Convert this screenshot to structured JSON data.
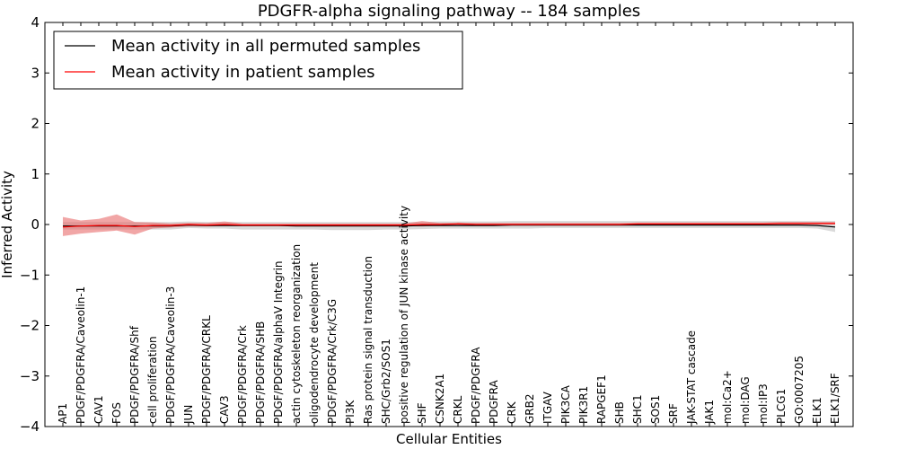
{
  "chart_data": {
    "type": "line",
    "title": "PDGFR-alpha signaling pathway -- 184 samples",
    "xlabel": "Cellular Entities",
    "ylabel": "Inferred Activity",
    "ylim": [
      -4,
      4
    ],
    "yticks": [
      4,
      3,
      2,
      1,
      0,
      -1,
      -2,
      -3,
      -4
    ],
    "ytick_labels": [
      "4",
      "3",
      "2",
      "1",
      "0",
      "−1",
      "−2",
      "−3",
      "−4"
    ],
    "legend_position": "top-left",
    "categories": [
      "AP1",
      "PDGF/PDGFRA/Caveolin-1",
      "CAV1",
      "FOS",
      "PDGF/PDGFRA/Shf",
      "cell proliferation",
      "PDGF/PDGFRA/Caveolin-3",
      "JUN",
      "PDGF/PDGFRA/CRKL",
      "CAV3",
      "PDGF/PDGFRA/Crk",
      "PDGF/PDGFRA/SHB",
      "PDGF/PDGFRA/alphaV Integrin",
      "actin cytoskeleton reorganization",
      "oligodendrocyte development",
      "PDGF/PDGFRA/Crk/C3G",
      "PI3K",
      "Ras protein signal transduction",
      "SHC/Grb2/SOS1",
      "positive regulation of JUN kinase activity",
      "SHF",
      "CSNK2A1",
      "CRKL",
      "PDGF/PDGFRA",
      "PDGFRA",
      "CRK",
      "GRB2",
      "ITGAV",
      "PIK3CA",
      "PIK3R1",
      "RAPGEF1",
      "SHB",
      "SHC1",
      "SOS1",
      "SRF",
      "JAK-STAT cascade",
      "JAK1",
      "mol:Ca2+",
      "mol:DAG",
      "mol:IP3",
      "PLCG1",
      "GO:0007205",
      "ELK1",
      "ELK1/SRF"
    ],
    "series": [
      {
        "name": "Mean activity in all permuted samples",
        "color": "#000000",
        "band_color": "#bbbbbb",
        "values": [
          -0.03,
          -0.03,
          -0.03,
          -0.03,
          -0.03,
          -0.03,
          -0.03,
          -0.01,
          -0.02,
          -0.02,
          -0.02,
          -0.02,
          -0.02,
          -0.03,
          -0.03,
          -0.03,
          -0.03,
          -0.03,
          -0.03,
          -0.03,
          -0.02,
          -0.02,
          -0.02,
          -0.02,
          -0.02,
          -0.01,
          -0.01,
          -0.01,
          -0.01,
          -0.01,
          -0.01,
          -0.01,
          -0.01,
          -0.01,
          -0.01,
          -0.01,
          -0.01,
          -0.01,
          -0.01,
          -0.01,
          -0.01,
          -0.01,
          -0.02,
          -0.05
        ],
        "band_lower": [
          -0.1,
          -0.1,
          -0.1,
          -0.1,
          -0.1,
          -0.1,
          -0.1,
          -0.07,
          -0.08,
          -0.08,
          -0.1,
          -0.1,
          -0.1,
          -0.1,
          -0.1,
          -0.11,
          -0.11,
          -0.11,
          -0.1,
          -0.1,
          -0.09,
          -0.08,
          -0.08,
          -0.08,
          -0.08,
          -0.08,
          -0.08,
          -0.07,
          -0.07,
          -0.07,
          -0.07,
          -0.07,
          -0.07,
          -0.07,
          -0.07,
          -0.07,
          -0.07,
          -0.07,
          -0.07,
          -0.07,
          -0.07,
          -0.07,
          -0.08,
          -0.15
        ],
        "band_upper": [
          0.05,
          0.05,
          0.05,
          0.05,
          0.05,
          0.05,
          0.05,
          0.06,
          0.05,
          0.05,
          0.05,
          0.05,
          0.05,
          0.05,
          0.05,
          0.05,
          0.05,
          0.05,
          0.05,
          0.05,
          0.05,
          0.06,
          0.06,
          0.06,
          0.06,
          0.07,
          0.07,
          0.07,
          0.07,
          0.07,
          0.07,
          0.07,
          0.07,
          0.07,
          0.07,
          0.07,
          0.07,
          0.07,
          0.07,
          0.07,
          0.07,
          0.07,
          0.07,
          0.07
        ]
      },
      {
        "name": "Mean activity in patient samples",
        "color": "#ff0000",
        "band_color": "#e86a6a",
        "values": [
          -0.05,
          -0.03,
          -0.02,
          -0.02,
          -0.04,
          -0.02,
          -0.02,
          0.0,
          -0.01,
          0.0,
          -0.01,
          -0.01,
          -0.01,
          -0.01,
          -0.01,
          -0.01,
          -0.01,
          -0.01,
          -0.01,
          -0.01,
          0.0,
          0.0,
          0.01,
          0.0,
          0.0,
          0.0,
          0.0,
          0.0,
          0.0,
          0.0,
          0.0,
          0.0,
          0.01,
          0.01,
          0.01,
          0.01,
          0.01,
          0.01,
          0.01,
          0.01,
          0.02,
          0.02,
          0.02,
          0.02
        ],
        "band_lower": [
          -0.23,
          -0.18,
          -0.15,
          -0.12,
          -0.2,
          -0.08,
          -0.06,
          -0.04,
          -0.04,
          -0.03,
          -0.03,
          -0.03,
          -0.03,
          -0.03,
          -0.03,
          -0.03,
          -0.03,
          -0.03,
          -0.03,
          -0.03,
          -0.04,
          -0.02,
          -0.01,
          -0.02,
          -0.02,
          -0.02,
          -0.02,
          -0.02,
          -0.02,
          -0.02,
          -0.02,
          -0.02,
          -0.01,
          -0.01,
          -0.01,
          -0.01,
          -0.01,
          -0.01,
          -0.01,
          -0.01,
          0.0,
          0.0,
          0.0,
          0.0
        ],
        "band_upper": [
          0.15,
          0.08,
          0.11,
          0.2,
          0.05,
          0.04,
          0.02,
          0.03,
          0.03,
          0.06,
          0.02,
          0.02,
          0.02,
          0.02,
          0.02,
          0.02,
          0.02,
          0.02,
          0.02,
          0.02,
          0.07,
          0.03,
          0.04,
          0.03,
          0.03,
          0.03,
          0.03,
          0.03,
          0.03,
          0.03,
          0.03,
          0.03,
          0.04,
          0.04,
          0.04,
          0.04,
          0.04,
          0.04,
          0.04,
          0.04,
          0.05,
          0.05,
          0.05,
          0.05
        ]
      }
    ]
  }
}
